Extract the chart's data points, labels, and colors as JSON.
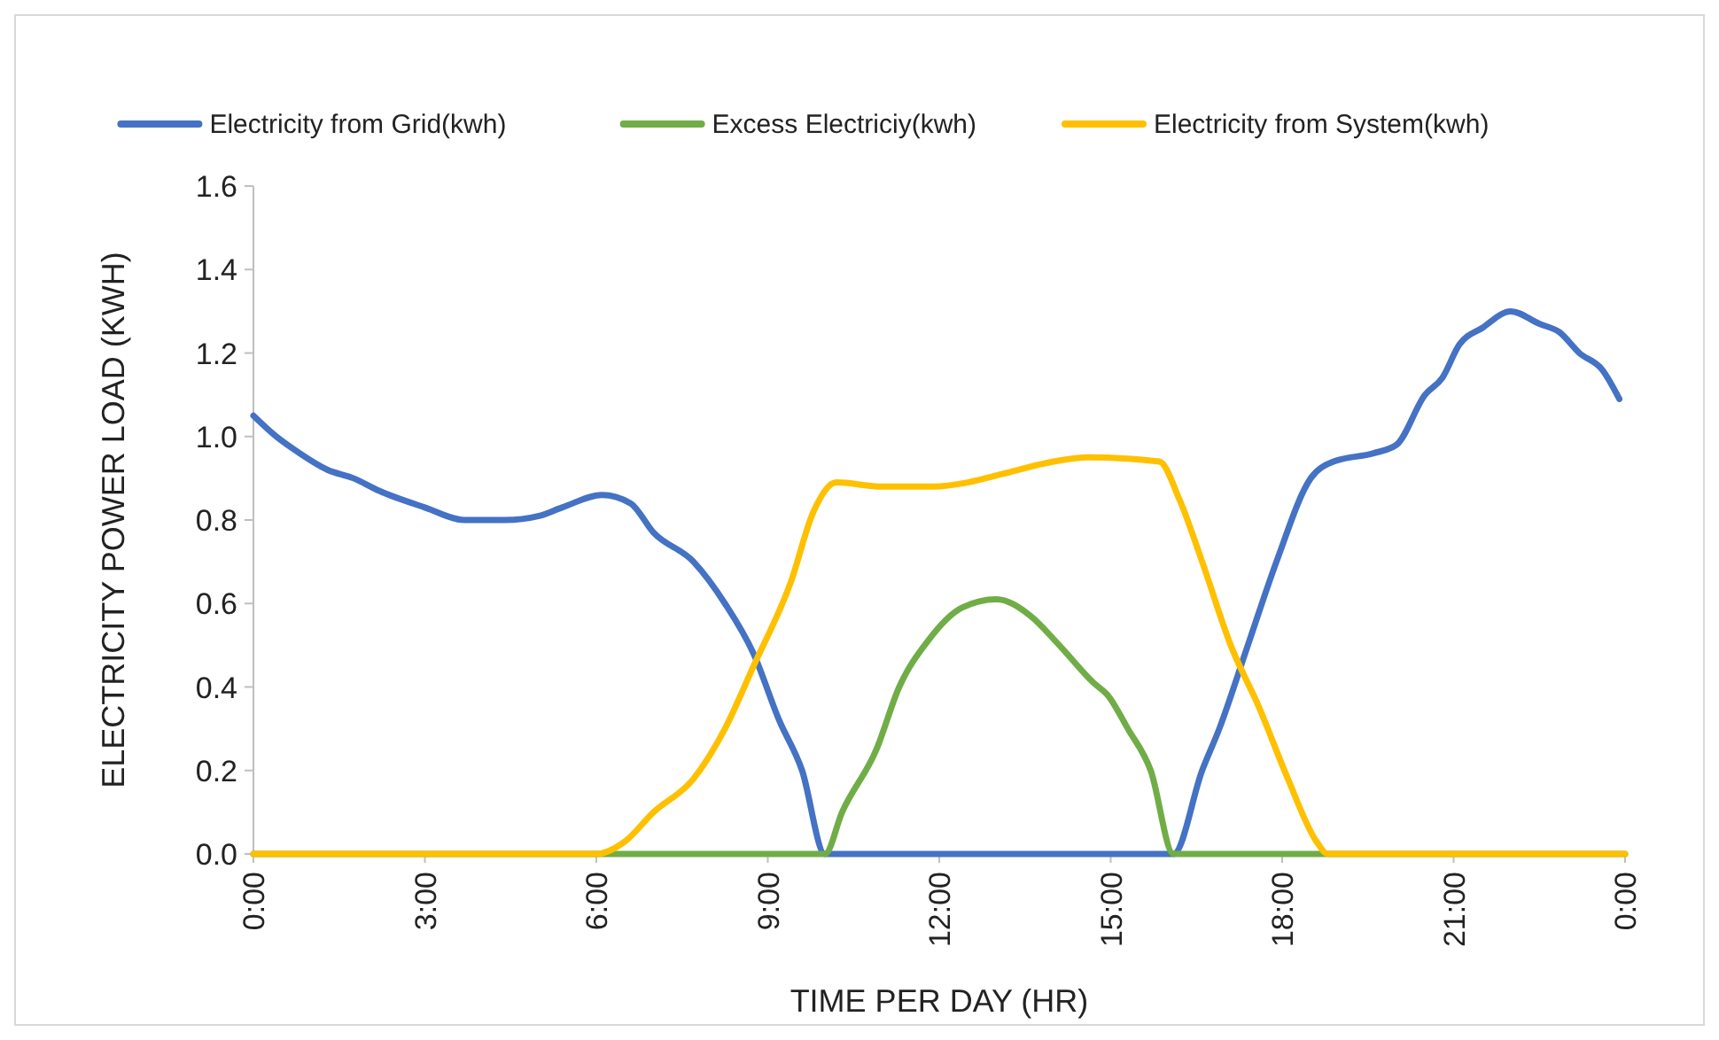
{
  "chart_data": {
    "type": "line",
    "xlabel": "TIME PER DAY (HR)",
    "ylabel": "ELECTRICITY POWER LOAD  (KWH)",
    "legend": "top",
    "grid": false,
    "marker": "none",
    "line_style": "solid",
    "xlim": [
      0,
      24
    ],
    "xticks": [
      {
        "value": 0,
        "label": "0:00"
      },
      {
        "value": 3,
        "label": "3:00"
      },
      {
        "value": 6,
        "label": "6:00"
      },
      {
        "value": 9,
        "label": "9:00"
      },
      {
        "value": 12,
        "label": "12:00"
      },
      {
        "value": 15,
        "label": "15:00"
      },
      {
        "value": 18,
        "label": "18:00"
      },
      {
        "value": 21,
        "label": "21:00"
      },
      {
        "value": 24,
        "label": "0:00"
      }
    ],
    "ylim": [
      0,
      1.6
    ],
    "yticks": [
      {
        "value": 0,
        "label": "0.0"
      },
      {
        "value": 0.2,
        "label": "0.2"
      },
      {
        "value": 0.4,
        "label": "0.4"
      },
      {
        "value": 0.6,
        "label": "0.6"
      },
      {
        "value": 0.8,
        "label": "0.8"
      },
      {
        "value": 1,
        "label": "1.0"
      },
      {
        "value": 1.2,
        "label": "1.2"
      },
      {
        "value": 1.4,
        "label": "1.4"
      },
      {
        "value": 1.6,
        "label": "1.6"
      }
    ],
    "series": [
      {
        "name": "Electricity from Grid(kwh)",
        "color": "#4472c4",
        "x": [
          0,
          0.4,
          0.7,
          1.3,
          1.75,
          2.2,
          3,
          3.7,
          4.4,
          5,
          5.4,
          6.1,
          6.6,
          7,
          7.7,
          8.25,
          8.75,
          9.2,
          9.6,
          10,
          13,
          16.1,
          16.6,
          16.9,
          17.4,
          17.9,
          18.5,
          18.9,
          19.6,
          20,
          20.5,
          20.8,
          21.1,
          21.5,
          22,
          22.5,
          22.85,
          23.2,
          23.6,
          23.9
        ],
        "values": [
          1.05,
          1.0,
          0.97,
          0.92,
          0.9,
          0.87,
          0.83,
          0.8,
          0.8,
          0.81,
          0.83,
          0.86,
          0.84,
          0.77,
          0.7,
          0.6,
          0.48,
          0.32,
          0.2,
          0,
          0,
          0,
          0.2,
          0.3,
          0.5,
          0.7,
          0.9,
          0.94,
          0.96,
          0.98,
          1.1,
          1.14,
          1.22,
          1.26,
          1.3,
          1.27,
          1.25,
          1.2,
          1.16,
          1.09
        ]
      },
      {
        "name": "Excess Electriciy(kwh)",
        "color": "#70ad47",
        "x": [
          0,
          5,
          10,
          10.3,
          10.9,
          11.3,
          11.8,
          12.4,
          13,
          13.6,
          14.1,
          14.7,
          14.95,
          15.3,
          15.7,
          16.1,
          20,
          24
        ],
        "values": [
          0,
          0,
          0,
          0.1,
          0.25,
          0.4,
          0.51,
          0.59,
          0.61,
          0.57,
          0.5,
          0.41,
          0.38,
          0.3,
          0.2,
          0,
          0,
          0
        ]
      },
      {
        "name": "Electricity from System(kwh)",
        "color": "#ffc000",
        "x": [
          0,
          3,
          6,
          6.5,
          7,
          7.7,
          8.25,
          8.75,
          9.4,
          9.8,
          10.2,
          11,
          11.9,
          12.5,
          13.1,
          14,
          14.6,
          15.85,
          16.2,
          16.6,
          17.1,
          17.6,
          18.1,
          18.6,
          18.8,
          21,
          24
        ],
        "values": [
          0,
          0,
          0,
          0.03,
          0.1,
          0.18,
          0.3,
          0.45,
          0.65,
          0.82,
          0.89,
          0.88,
          0.88,
          0.89,
          0.91,
          0.94,
          0.95,
          0.94,
          0.85,
          0.7,
          0.5,
          0.35,
          0.18,
          0.03,
          0,
          0,
          0
        ]
      }
    ]
  }
}
